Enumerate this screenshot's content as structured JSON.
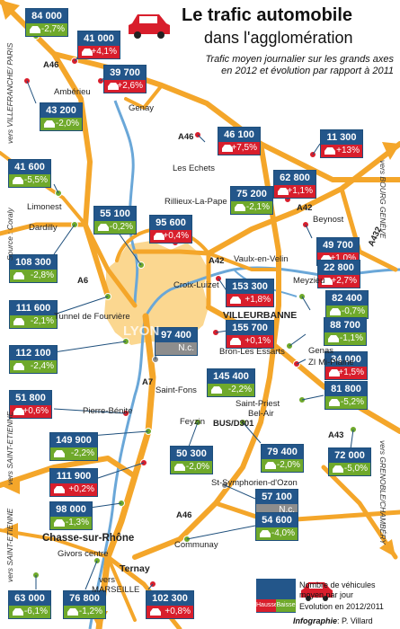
{
  "title": {
    "line1": "Le trafic automobile",
    "line2": "dans l'agglomération"
  },
  "subtitle": {
    "line1": "Trafic moyen journalier sur les grands axes",
    "line2": "en 2012 et évolution par rapport à 2011"
  },
  "source": "Source : Coraly",
  "credit": {
    "brand": "Infographie",
    "author": ": P. Villard"
  },
  "legend": {
    "line1": "Nombre de véhicules",
    "line2": "moyen par jour",
    "line3": "Evolution en 2012/2011",
    "up_label": "Hausse",
    "down_label": "Baisse"
  },
  "center_label": "LYON",
  "colors": {
    "count_bg": "#23568a",
    "increase": "#d81e2c",
    "decrease": "#6fa92b",
    "unchanged": "#8d8d8d",
    "roads": "#f4a62a",
    "river": "#6aa7d8",
    "urban": "#fbd790"
  },
  "stats": [
    {
      "count": "84 000",
      "change": "-2,7%",
      "trend": "down"
    },
    {
      "count": "41 000",
      "change": "+4,1%",
      "trend": "up"
    },
    {
      "count": "39 700",
      "change": "+2,6%",
      "trend": "up"
    },
    {
      "count": "43 200",
      "change": "-2,0%",
      "trend": "down"
    },
    {
      "count": "46 100",
      "change": "+7,5%",
      "trend": "up"
    },
    {
      "count": "11 300",
      "change": "+13%",
      "trend": "up"
    },
    {
      "count": "41 600",
      "change": "-5,5%",
      "trend": "down"
    },
    {
      "count": "62 800",
      "change": "+1,1%",
      "trend": "up"
    },
    {
      "count": "75 200",
      "change": "-2,1%",
      "trend": "down"
    },
    {
      "count": "55 100",
      "change": "-0,2%",
      "trend": "down"
    },
    {
      "count": "95 600",
      "change": "+0,4%",
      "trend": "up"
    },
    {
      "count": "49 700",
      "change": "+1,0%",
      "trend": "up"
    },
    {
      "count": "108 300",
      "change": "-2,8%",
      "trend": "down"
    },
    {
      "count": "22 800",
      "change": "+2,7%",
      "trend": "up"
    },
    {
      "count": "153 300",
      "change": "+1,8%",
      "trend": "up"
    },
    {
      "count": "82 400",
      "change": "-0,7%",
      "trend": "down"
    },
    {
      "count": "111 600",
      "change": "-2,1%",
      "trend": "down"
    },
    {
      "count": "155 700",
      "change": "+0,1%",
      "trend": "up"
    },
    {
      "count": "88 700",
      "change": "-1,1%",
      "trend": "down"
    },
    {
      "count": "97 400",
      "change": "N.c.",
      "trend": "flat"
    },
    {
      "count": "112 100",
      "change": "-2,4%",
      "trend": "down"
    },
    {
      "count": "34 000",
      "change": "+1,5%",
      "trend": "up"
    },
    {
      "count": "145 400",
      "change": "-2,2%",
      "trend": "down"
    },
    {
      "count": "81 800",
      "change": "-5,2%",
      "trend": "down"
    },
    {
      "count": "51 800",
      "change": "+0,6%",
      "trend": "up"
    },
    {
      "count": "149 900",
      "change": "-2,2%",
      "trend": "down"
    },
    {
      "count": "50 300",
      "change": "-2,0%",
      "trend": "down"
    },
    {
      "count": "79 400",
      "change": "-2,0%",
      "trend": "down"
    },
    {
      "count": "72 000",
      "change": "-5,0%",
      "trend": "down"
    },
    {
      "count": "111 900",
      "change": "+0,2%",
      "trend": "up"
    },
    {
      "count": "98 000",
      "change": "-1,3%",
      "trend": "down"
    },
    {
      "count": "57 100",
      "change": "N.c.",
      "trend": "flat"
    },
    {
      "count": "54 600",
      "change": "-4,0%",
      "trend": "down"
    },
    {
      "count": "63 000",
      "change": "-6,1%",
      "trend": "down"
    },
    {
      "count": "76 800",
      "change": "-1,2%",
      "trend": "down"
    },
    {
      "count": "102 300",
      "change": "+0,8%",
      "trend": "up"
    }
  ],
  "places": {
    "amberieu": "Ambérieu",
    "genay": "Genay",
    "les_echets": "Les Echets",
    "limonest": "Limonest",
    "dardilly": "Dardilly",
    "rillieux": "Rillieux-La-Pape",
    "beynost": "Beynost",
    "vaulx": "Vaulx-en-Velin",
    "croix_luizet": "Croix-Luizet",
    "meyzieu": "Meyzieu",
    "villeurbanne": "VILLEURBANNE",
    "tunnel": "Tunnel de Fourvière",
    "bron": "Bron-Les Essarts",
    "genas": "Genas",
    "zi_mi_plaine": "ZI Mi-Plaine",
    "saint_fons": "Saint-Fons",
    "saint_priest": "Saint-Priest",
    "bel_air": "Bel-Air",
    "pierre_benite": "Pierre-Bénite",
    "feyzin": "Feyzin",
    "bus_d301": "BUS/D301",
    "st_symphorien": "St-Symphorien-d'Ozon",
    "chasse": "Chasse-sur-Rhône",
    "givors": "Givors centre",
    "ternay": "Ternay",
    "communay": "Communay"
  },
  "roads": {
    "a46_nw": "A46",
    "a46_n": "A46",
    "a42_ne": "A42",
    "a42_c": "A42",
    "a432": "A432",
    "a6": "A6",
    "a7": "A7",
    "a43": "A43",
    "a46_s": "A46"
  },
  "directions": {
    "villefranche": "vers VILLEFRANCHE/ PARIS",
    "bourg": "vers BOURG GENÈVE",
    "st_etienne_1": "vers SAINT-ETIENNE",
    "st_etienne_2": "vers SAINT-ETIENNE",
    "grenoble": "vers GRENOBLE/CHAMBÉRY",
    "marseille_1": "vers",
    "marseille_2": "MARSEILLE"
  }
}
